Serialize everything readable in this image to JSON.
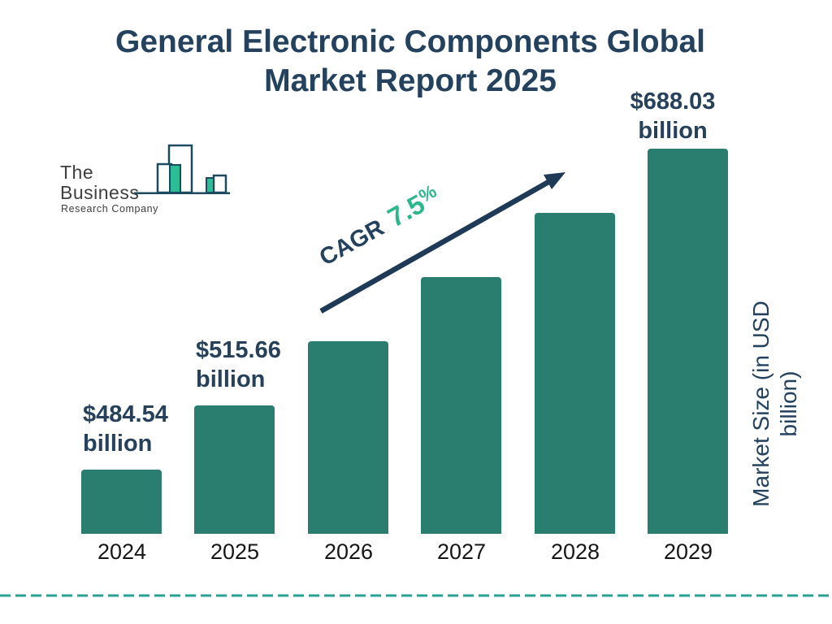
{
  "title": {
    "line1": "General Electronic Components Global",
    "line2": "Market Report 2025"
  },
  "logo": {
    "line1": "The Business",
    "line2": "Research Company"
  },
  "cagr": {
    "prefix": "CAGR",
    "number": "7.5",
    "suffix": "%"
  },
  "y_axis_label": "Market Size (in USD billion)",
  "colors": {
    "bar": "#2a7e70",
    "navy_text": "#24425e",
    "value_label": "#27415a",
    "arrow": "#1e3a56",
    "cagr_green": "#2eb78c",
    "dashed_line": "#2aa195",
    "year_label": "#161616",
    "logo_teal": "#2cbd96",
    "logo_outline": "#1d4a5e",
    "logo_text": "#3f3f3f"
  },
  "chart_data": {
    "type": "bar",
    "title": "General Electronic Components Global Market Report 2025",
    "categories": [
      "2024",
      "2025",
      "2026",
      "2027",
      "2028",
      "2029"
    ],
    "values": [
      484.54,
      515.66,
      null,
      null,
      null,
      688.03
    ],
    "unit": "USD billion",
    "ylabel": "Market Size (in USD billion)",
    "xlabel": "",
    "grid": false,
    "legend": null,
    "cagr_percent": 7.5,
    "bars": [
      {
        "year": "2024",
        "value": 484.54,
        "label_line1": "$484.54",
        "label_line2": "billion"
      },
      {
        "year": "2025",
        "value": 515.66,
        "label_line1": "$515.66",
        "label_line2": "billion"
      },
      {
        "year": "2026",
        "value": null,
        "label_line1": "",
        "label_line2": ""
      },
      {
        "year": "2027",
        "value": null,
        "label_line1": "",
        "label_line2": ""
      },
      {
        "year": "2028",
        "value": null,
        "label_line1": "",
        "label_line2": ""
      },
      {
        "year": "2029",
        "value": 688.03,
        "label_line1": "$688.03",
        "label_line2": "billion"
      }
    ]
  }
}
